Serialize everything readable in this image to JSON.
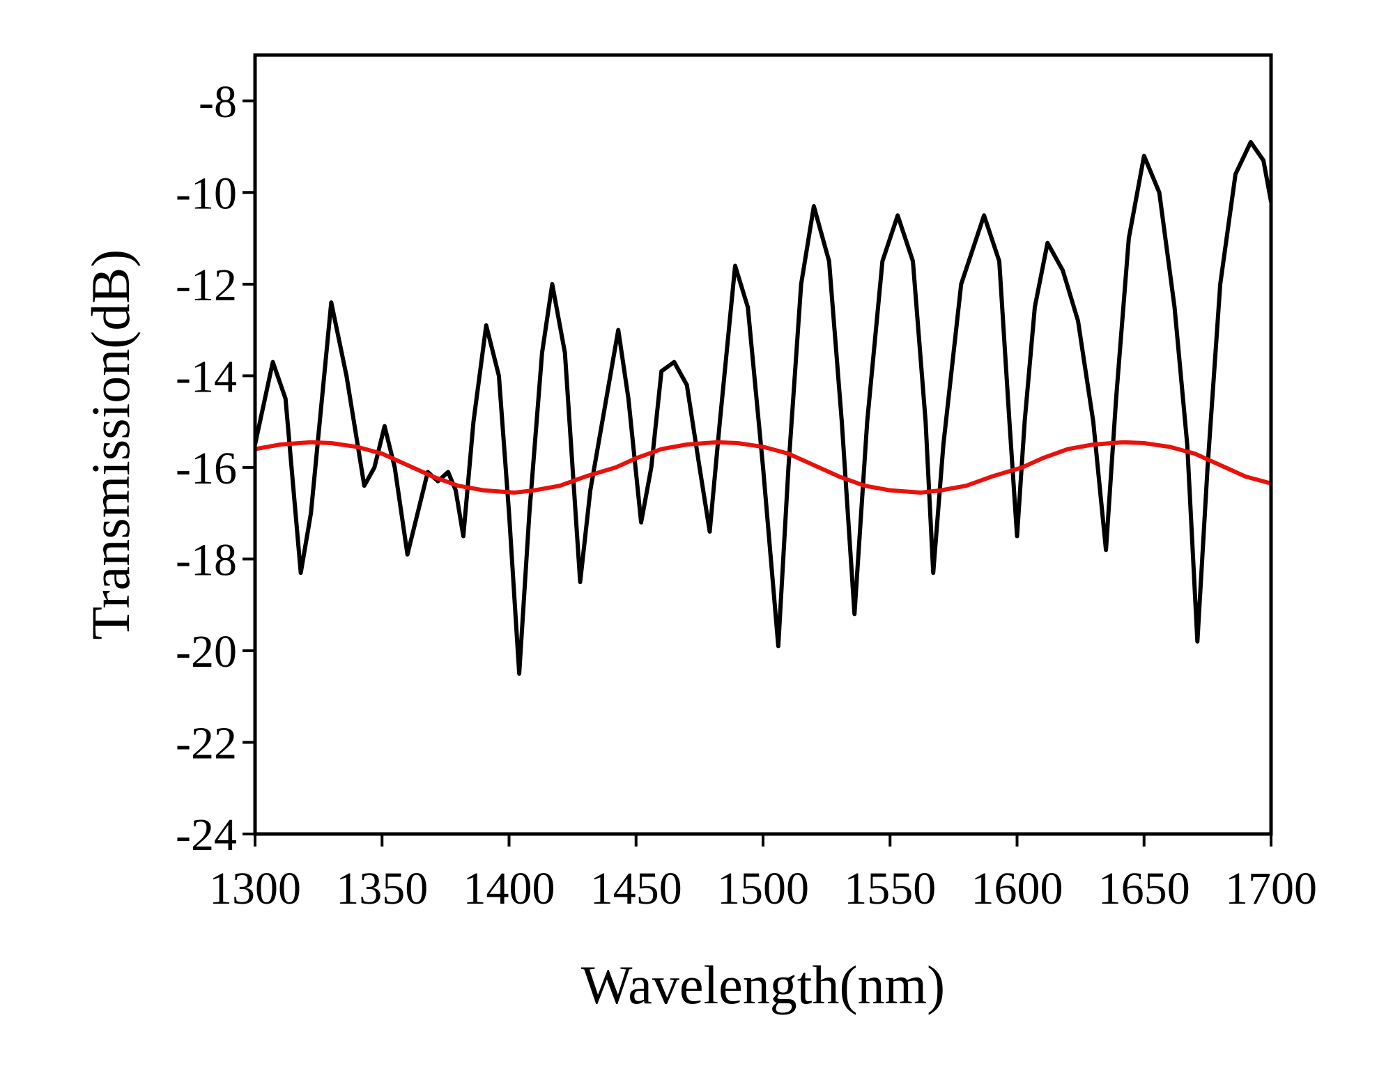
{
  "chart_data": {
    "type": "line",
    "xlabel": "Wavelength(nm)",
    "ylabel": "Transmission(dB)",
    "xlim": [
      1300,
      1700
    ],
    "xticks": [
      1300,
      1350,
      1400,
      1450,
      1500,
      1550,
      1600,
      1650,
      1700
    ],
    "ylim": [
      -24,
      -7
    ],
    "yticks": [
      -24,
      -22,
      -20,
      -18,
      -16,
      -14,
      -12,
      -10,
      -8
    ],
    "grid": false,
    "series": [
      {
        "color": "#000000",
        "x": [
          1300,
          1307,
          1312,
          1318,
          1322,
          1330,
          1336,
          1343,
          1347,
          1351,
          1355,
          1360,
          1368,
          1372,
          1376,
          1379,
          1382,
          1386,
          1391,
          1396,
          1400,
          1404,
          1408,
          1413,
          1417,
          1422,
          1428,
          1432,
          1443,
          1447,
          1452,
          1456,
          1460,
          1465,
          1470,
          1475,
          1479,
          1483,
          1489,
          1494,
          1500,
          1506,
          1510,
          1515,
          1520,
          1526,
          1531,
          1536,
          1541,
          1547,
          1553,
          1559,
          1564,
          1567,
          1571,
          1578,
          1587,
          1593,
          1597,
          1600,
          1603,
          1607,
          1612,
          1618,
          1624,
          1630,
          1635,
          1639,
          1644,
          1650,
          1656,
          1662,
          1667,
          1671,
          1675,
          1680,
          1686,
          1692,
          1697,
          1700
        ],
        "values": [
          -15.5,
          -13.7,
          -14.5,
          -18.3,
          -17,
          -12.4,
          -14,
          -16.4,
          -16,
          -15.1,
          -16,
          -17.9,
          -16.1,
          -16.3,
          -16.1,
          -16.5,
          -17.5,
          -15,
          -12.9,
          -14,
          -17,
          -20.5,
          -17,
          -13.5,
          -12,
          -13.5,
          -18.5,
          -16.5,
          -13,
          -14.5,
          -17.2,
          -16,
          -13.9,
          -13.7,
          -14.2,
          -16,
          -17.4,
          -15,
          -11.6,
          -12.5,
          -16,
          -19.9,
          -16,
          -12,
          -10.3,
          -11.5,
          -15,
          -19.2,
          -15,
          -11.5,
          -10.5,
          -11.5,
          -15,
          -18.3,
          -15.5,
          -12,
          -10.5,
          -11.5,
          -15,
          -17.5,
          -15,
          -12.5,
          -11.1,
          -11.7,
          -12.8,
          -15,
          -17.8,
          -14.5,
          -11,
          -9.2,
          -10,
          -12.5,
          -15.5,
          -19.8,
          -16,
          -12,
          -9.6,
          -8.9,
          -9.3,
          -10.2
        ]
      },
      {
        "color": "#e8120c",
        "x": [
          1300,
          1310,
          1322,
          1330,
          1340,
          1350,
          1362,
          1370,
          1380,
          1390,
          1402,
          1410,
          1420,
          1430,
          1442,
          1450,
          1460,
          1470,
          1482,
          1490,
          1500,
          1510,
          1522,
          1530,
          1540,
          1550,
          1562,
          1570,
          1580,
          1590,
          1602,
          1610,
          1620,
          1630,
          1642,
          1650,
          1660,
          1670,
          1682,
          1690,
          1700
        ],
        "values": [
          -15.6,
          -15.5,
          -15.45,
          -15.47,
          -15.55,
          -15.7,
          -16.0,
          -16.2,
          -16.4,
          -16.5,
          -16.55,
          -16.5,
          -16.4,
          -16.2,
          -16.0,
          -15.8,
          -15.6,
          -15.5,
          -15.45,
          -15.47,
          -15.55,
          -15.7,
          -16.0,
          -16.2,
          -16.4,
          -16.5,
          -16.55,
          -16.5,
          -16.4,
          -16.2,
          -16.0,
          -15.8,
          -15.6,
          -15.5,
          -15.45,
          -15.47,
          -15.55,
          -15.7,
          -16.0,
          -16.2,
          -16.35
        ]
      }
    ]
  }
}
